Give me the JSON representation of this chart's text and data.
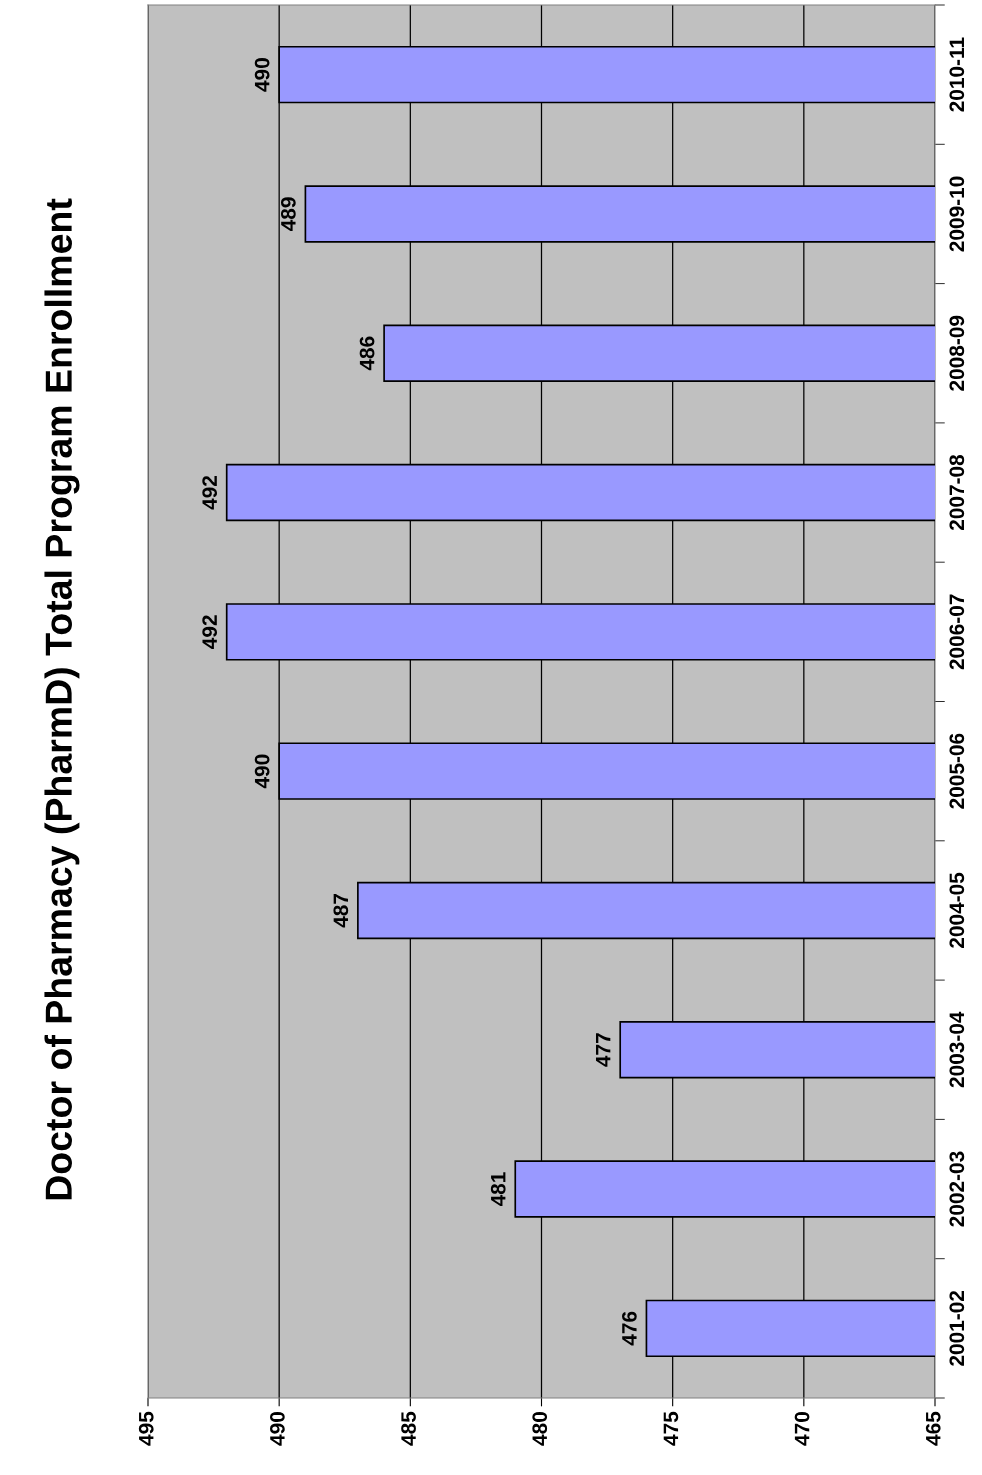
{
  "chart_data": {
    "type": "bar",
    "orientation": "horizontal",
    "title": "Doctor of Pharmacy (PharmD) Total Program Enrollment",
    "categories": [
      "2010-11",
      "2009-10",
      "2008-09",
      "2007-08",
      "2006-07",
      "2005-06",
      "2004-05",
      "2003-04",
      "2002-03",
      "2001-02"
    ],
    "values": [
      490,
      489,
      486,
      492,
      492,
      490,
      487,
      477,
      481,
      476
    ],
    "color": "#9999ff",
    "xlim": [
      495,
      465
    ],
    "xticks": [
      495,
      490,
      485,
      480,
      475,
      470,
      465
    ],
    "grid": "x",
    "data_labels": true
  }
}
